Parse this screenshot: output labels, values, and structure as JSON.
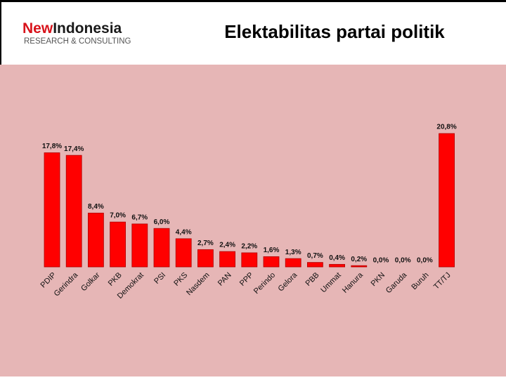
{
  "logo": {
    "brand_first": "New",
    "brand_second": "Indonesia",
    "tagline": "RESEARCH & CONSULTING"
  },
  "chart_data": {
    "type": "bar",
    "title": "Elektabilitas partai politik",
    "categories": [
      "PDIP",
      "Gerindra",
      "Golkar",
      "PKB",
      "Demokrat",
      "PSI",
      "PKS",
      "Nasdem",
      "PAN",
      "PPP",
      "Perindo",
      "Gelora",
      "PBB",
      "Ummat",
      "Hanura",
      "PKN",
      "Garuda",
      "Buruh",
      "TT/TJ"
    ],
    "values": [
      17.8,
      17.4,
      8.4,
      7.0,
      6.7,
      6.0,
      4.4,
      2.7,
      2.4,
      2.2,
      1.6,
      1.3,
      0.7,
      0.4,
      0.2,
      0.0,
      0.0,
      0.0,
      20.8
    ],
    "value_labels": [
      "17,8%",
      "17,4%",
      "8,4%",
      "7,0%",
      "6,7%",
      "6,0%",
      "4,4%",
      "2,7%",
      "2,4%",
      "2,2%",
      "1,6%",
      "1,3%",
      "0,7%",
      "0,4%",
      "0,2%",
      "0,0%",
      "0,0%",
      "0,0%",
      "20,8%"
    ],
    "color": "#ff0000"
  }
}
